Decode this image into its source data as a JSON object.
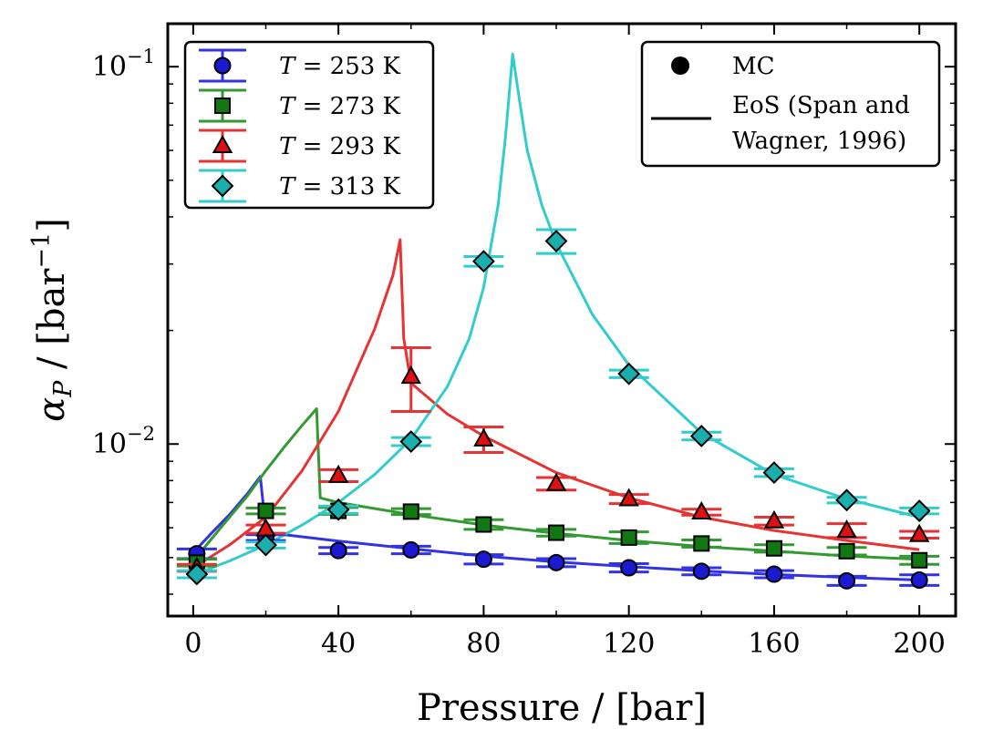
{
  "chart_data": {
    "type": "scatter",
    "title": "",
    "xlabel": "Pressure / [bar]",
    "ylabel": "α_P / [bar^-1]",
    "ylabel_parts": {
      "symbol": "α",
      "sub": "P",
      "unit_open": " / [bar",
      "exp": "−1",
      "unit_close": "]"
    },
    "yscale": "log",
    "xlim": [
      -7,
      210
    ],
    "ylim": [
      0.0035,
      0.13
    ],
    "x_ticks": [
      0,
      40,
      80,
      120,
      160,
      200
    ],
    "x_tick_labels": [
      "0",
      "40",
      "80",
      "120",
      "160",
      "200"
    ],
    "y_ticks": [
      0.01,
      0.1
    ],
    "y_tick_labels": [
      {
        "base": "10",
        "exp": "−2"
      },
      {
        "base": "10",
        "exp": "−1"
      }
    ],
    "series": [
      {
        "name": "T = 253 K",
        "label_var": "T",
        "label_rest": " = 253 K",
        "color": "#3333e6",
        "marker": "circle",
        "fill": "#1a1ad0",
        "x": [
          1,
          20,
          40,
          60,
          80,
          100,
          120,
          140,
          160,
          180,
          200
        ],
        "y": [
          0.00512,
          0.00565,
          0.00522,
          0.00524,
          0.00495,
          0.00485,
          0.0047,
          0.0046,
          0.00452,
          0.00434,
          0.00436
        ],
        "err": [
          0.00015,
          0.0001,
          0.0001,
          0.00012,
          0.00014,
          0.00012,
          0.00012,
          0.0001,
          0.0001,
          0.00012,
          0.00014
        ],
        "eos_x": [
          0,
          5,
          10,
          15,
          18.5,
          20,
          22,
          40,
          60,
          80,
          100,
          120,
          140,
          160,
          180,
          200
        ],
        "eos_y": [
          0.00515,
          0.0058,
          0.0065,
          0.0074,
          0.0082,
          0.0059,
          0.0058,
          0.00553,
          0.00528,
          0.00505,
          0.00487,
          0.00473,
          0.00461,
          0.00451,
          0.00443,
          0.00436
        ]
      },
      {
        "name": "T = 273 K",
        "label_var": "T",
        "label_rest": " = 273 K",
        "color": "#339933",
        "marker": "square",
        "fill": "#117711",
        "x": [
          1,
          20,
          40,
          60,
          80,
          100,
          120,
          140,
          160,
          180,
          200
        ],
        "y": [
          0.00485,
          0.00665,
          0.00665,
          0.00662,
          0.00612,
          0.00582,
          0.00565,
          0.00545,
          0.00529,
          0.0052,
          0.00492
        ],
        "err": [
          0.0001,
          0.00012,
          0.00014,
          0.00012,
          0.00018,
          0.00012,
          0.0002,
          0.00012,
          0.00012,
          0.00012,
          0.00012
        ],
        "eos_x": [
          0,
          5,
          10,
          15,
          20,
          25,
          30,
          34,
          35,
          40,
          60,
          80,
          100,
          120,
          140,
          160,
          180,
          200
        ],
        "eos_y": [
          0.0049,
          0.0056,
          0.0064,
          0.0073,
          0.0085,
          0.0098,
          0.0112,
          0.0124,
          0.0072,
          0.007,
          0.0065,
          0.0061,
          0.0058,
          0.00555,
          0.00535,
          0.0052,
          0.00505,
          0.00495
        ]
      },
      {
        "name": "T = 293 K",
        "label_var": "T",
        "label_rest": " = 293 K",
        "color": "#e63333",
        "marker": "triangle",
        "fill": "#dd1111",
        "x": [
          1,
          20,
          40,
          60,
          80,
          100,
          120,
          140,
          160,
          180,
          200
        ],
        "y": [
          0.0047,
          0.00595,
          0.00825,
          0.0151,
          0.0103,
          0.00785,
          0.00715,
          0.0066,
          0.00625,
          0.0059,
          0.00575
        ],
        "err": [
          0.0001,
          0.00015,
          0.0003,
          0.0029,
          0.0008,
          0.0003,
          0.0002,
          0.00012,
          0.00015,
          0.00025,
          0.00012
        ],
        "eos_x": [
          0,
          10,
          20,
          30,
          40,
          50,
          55,
          57,
          58,
          60,
          70,
          80,
          100,
          120,
          140,
          160,
          180,
          200
        ],
        "eos_y": [
          0.0047,
          0.0054,
          0.0064,
          0.0085,
          0.0122,
          0.0202,
          0.028,
          0.0348,
          0.019,
          0.0145,
          0.012,
          0.0105,
          0.0084,
          0.0072,
          0.0064,
          0.0059,
          0.00555,
          0.00525
        ]
      },
      {
        "name": "T = 313 K",
        "label_var": "T",
        "label_rest": " = 313 K",
        "color": "#33cccc",
        "marker": "diamond",
        "fill": "#1aaeae",
        "x": [
          1,
          20,
          40,
          60,
          80,
          100,
          120,
          140,
          160,
          180,
          200
        ],
        "y": [
          0.00452,
          0.0054,
          0.0067,
          0.01015,
          0.0305,
          0.0345,
          0.01535,
          0.0105,
          0.0084,
          0.0071,
          0.00665
        ],
        "err": [
          0.0001,
          0.0001,
          0.00015,
          0.00025,
          0.0009,
          0.0025,
          0.00035,
          0.00025,
          0.0002,
          0.00012,
          0.00012
        ],
        "eos_x": [
          0,
          10,
          20,
          30,
          40,
          50,
          60,
          70,
          76,
          80,
          84,
          86,
          88,
          90,
          92,
          96,
          100,
          110,
          120,
          140,
          160,
          180,
          200
        ],
        "eos_y": [
          0.0045,
          0.0049,
          0.0054,
          0.0061,
          0.007,
          0.0083,
          0.0103,
          0.0142,
          0.019,
          0.026,
          0.043,
          0.065,
          0.108,
          0.08,
          0.06,
          0.043,
          0.034,
          0.022,
          0.0162,
          0.0107,
          0.0083,
          0.00715,
          0.0064
        ]
      }
    ],
    "legend": {
      "location": "upper-left",
      "entries": [
        "T = 253 K",
        "T = 273 K",
        "T = 293 K",
        "T = 313 K"
      ]
    },
    "legend2": {
      "location": "upper-right",
      "marker_entry": "MC",
      "line_entry_line1": "EoS (Span and",
      "line_entry_line2": "Wagner, 1996)"
    }
  }
}
